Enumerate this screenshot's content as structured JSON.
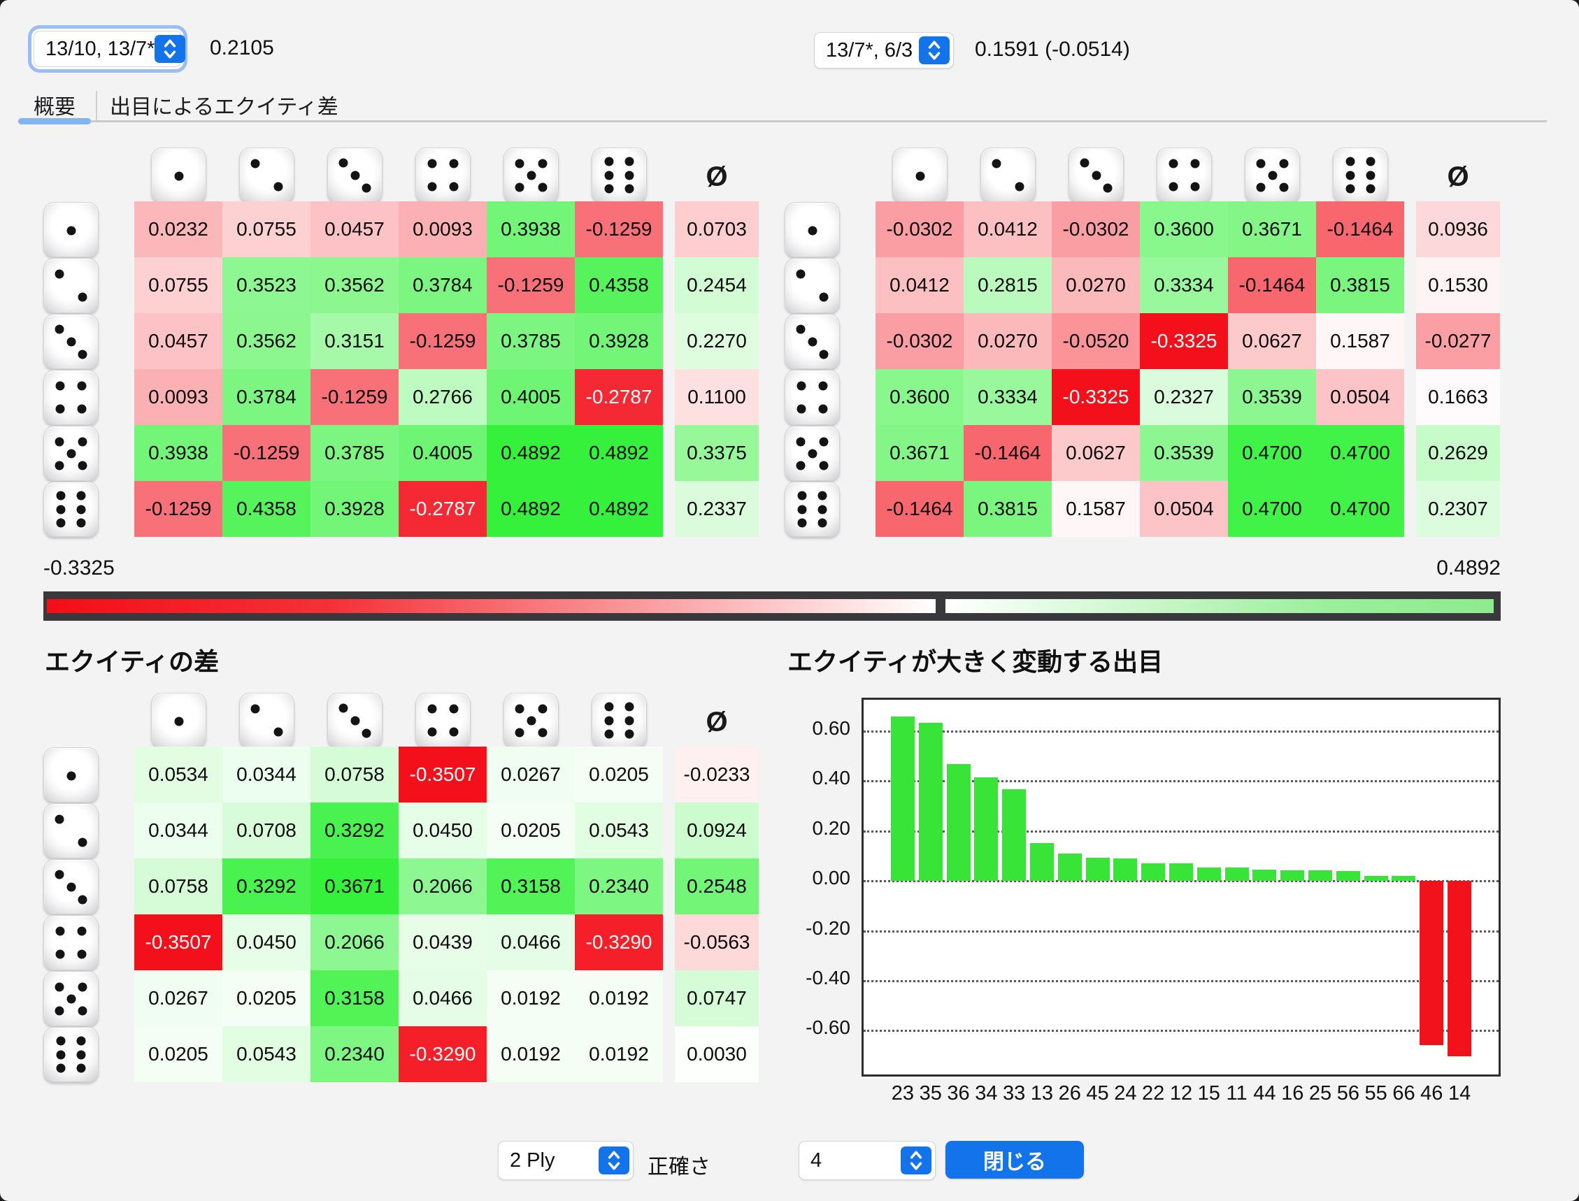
{
  "header": {
    "move1": {
      "label": "13/10, 13/7*",
      "equity": "0.2105"
    },
    "move2": {
      "label": "13/7*, 6/3",
      "equity": "0.1591 (-0.0514)"
    }
  },
  "tabs": {
    "overview": "概要",
    "by_roll": "出目によるエクイティ差"
  },
  "avg_symbol": "Ø",
  "colormap": {
    "min": -0.3325,
    "max": 0.4892,
    "midpoint": 0.176,
    "min_label": "-0.3325",
    "max_label": "0.4892",
    "green": "#35f13b",
    "red": "#f4101b",
    "bar_left_red": "#f40e15",
    "bar_right_green": "#8deb8e",
    "frame": "#39393c"
  },
  "matrix1": {
    "rows": [
      [
        0.0232,
        0.0755,
        0.0457,
        0.0093,
        0.3938,
        -0.1259
      ],
      [
        0.0755,
        0.3523,
        0.3562,
        0.3784,
        -0.1259,
        0.4358
      ],
      [
        0.0457,
        0.3562,
        0.3151,
        -0.1259,
        0.3785,
        0.3928
      ],
      [
        0.0093,
        0.3784,
        -0.1259,
        0.2766,
        0.4005,
        -0.2787
      ],
      [
        0.3938,
        -0.1259,
        0.3785,
        0.4005,
        0.4892,
        0.4892
      ],
      [
        -0.1259,
        0.4358,
        0.3928,
        -0.2787,
        0.4892,
        0.4892
      ]
    ],
    "row_avg": [
      0.0703,
      0.2454,
      0.227,
      0.11,
      0.3375,
      0.2337
    ]
  },
  "matrix2": {
    "rows": [
      [
        -0.0302,
        0.0412,
        -0.0302,
        0.36,
        0.3671,
        -0.1464
      ],
      [
        0.0412,
        0.2815,
        0.027,
        0.3334,
        -0.1464,
        0.3815
      ],
      [
        -0.0302,
        0.027,
        -0.052,
        -0.3325,
        0.0627,
        0.1587
      ],
      [
        0.36,
        0.3334,
        -0.3325,
        0.2327,
        0.3539,
        0.0504
      ],
      [
        0.3671,
        -0.1464,
        0.0627,
        0.3539,
        0.47,
        0.47
      ],
      [
        -0.1464,
        0.3815,
        0.1587,
        0.0504,
        0.47,
        0.47
      ]
    ],
    "row_avg": [
      0.0936,
      0.153,
      -0.0277,
      0.1663,
      0.2629,
      0.2307
    ]
  },
  "diff_matrix": {
    "title": "エクイティの差",
    "min": -0.3507,
    "max": 0.3671,
    "midpoint": 0,
    "rows": [
      [
        0.0534,
        0.0344,
        0.0758,
        -0.3507,
        0.0267,
        0.0205
      ],
      [
        0.0344,
        0.0708,
        0.3292,
        0.045,
        0.0205,
        0.0543
      ],
      [
        0.0758,
        0.3292,
        0.3671,
        0.2066,
        0.3158,
        0.234
      ],
      [
        -0.3507,
        0.045,
        0.2066,
        0.0439,
        0.0466,
        -0.329
      ],
      [
        0.0267,
        0.0205,
        0.3158,
        0.0466,
        0.0192,
        0.0192
      ],
      [
        0.0205,
        0.0543,
        0.234,
        -0.329,
        0.0192,
        0.0192
      ]
    ],
    "row_avg": [
      -0.0233,
      0.0924,
      0.2548,
      -0.0563,
      0.0747,
      0.003
    ]
  },
  "chart_data": {
    "type": "bar",
    "title": "エクイティが大きく変動する出目",
    "categories": [
      "23",
      "35",
      "36",
      "34",
      "33",
      "13",
      "26",
      "45",
      "24",
      "22",
      "12",
      "15",
      "11",
      "44",
      "16",
      "25",
      "56",
      "55",
      "66",
      "46",
      "14"
    ],
    "values": [
      0.6584,
      0.6316,
      0.468,
      0.4132,
      0.3671,
      0.1516,
      0.1086,
      0.0932,
      0.09,
      0.0708,
      0.0688,
      0.0534,
      0.0534,
      0.0439,
      0.041,
      0.041,
      0.0384,
      0.0192,
      0.0192,
      -0.658,
      -0.7014
    ],
    "yticks": [
      0.6,
      0.4,
      0.2,
      0.0,
      -0.2,
      -0.4,
      -0.6
    ],
    "ylim": [
      -0.775,
      0.725
    ],
    "grid": "dotted",
    "xlabel": "",
    "ylabel": "",
    "positive_color": "#38e438",
    "negative_color": "#f2121c"
  },
  "controls": {
    "ply": "2 Ply",
    "accuracy_label": "正確さ",
    "count": "4",
    "close": "閉じる"
  }
}
